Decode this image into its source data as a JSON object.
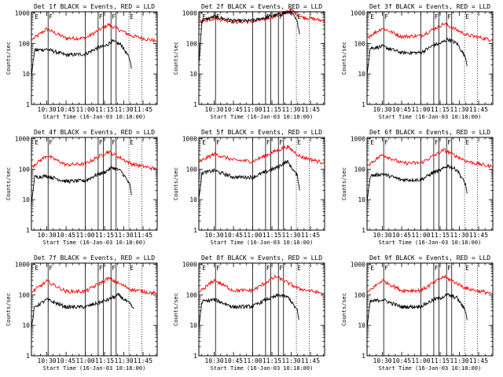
{
  "colors": {
    "background": "#ffffff",
    "axes": "#000000",
    "events": "#000000",
    "lld": "#ff0000",
    "annotation": "#000000"
  },
  "chart_data": {
    "type": "line",
    "grid": false,
    "log_y": true,
    "ylabel": "Counts/sec",
    "xlabel": "Start Time (16-Jan-03 10:18:00)",
    "xlim": [
      "10:18",
      "11:56"
    ],
    "ylim": [
      1,
      1100
    ],
    "x_ticks": [
      "10:30",
      "10:45",
      "11:00",
      "11:15",
      "11:30",
      "11:45"
    ],
    "y_ticks": [
      "1",
      "10",
      "100",
      "1000"
    ],
    "time_markers": [
      {
        "time": "10:20",
        "label": "E",
        "line": "none"
      },
      {
        "time": "10:31",
        "label": "F",
        "line": "solid"
      },
      {
        "time": "11:00",
        "label": "",
        "line": "solid"
      },
      {
        "time": "11:10",
        "label": "F",
        "line": "solid"
      },
      {
        "time": "11:14",
        "label": "",
        "line": "solid"
      },
      {
        "time": "11:20",
        "label": "F",
        "line": "solid"
      },
      {
        "time": "11:24",
        "label": "",
        "line": "solid"
      },
      {
        "time": "11:34",
        "label": "E",
        "line": "dotted"
      },
      {
        "time": "11:44",
        "label": "",
        "line": "dotted"
      }
    ],
    "series_names": [
      "BLACK = Events",
      "RED = LLD"
    ],
    "panels": [
      {
        "title": "Det 1f BLACK = Events, RED = LLD",
        "red": [
          [
            10.3,
            130
          ],
          [
            10.5,
            300
          ],
          [
            10.75,
            150
          ],
          [
            11.0,
            150
          ],
          [
            11.3,
            420
          ],
          [
            11.6,
            180
          ],
          [
            11.93,
            120
          ]
        ],
        "black": [
          [
            10.3,
            8
          ],
          [
            10.34,
            60
          ],
          [
            10.5,
            65
          ],
          [
            10.75,
            42
          ],
          [
            11.0,
            45
          ],
          [
            11.17,
            75
          ],
          [
            11.25,
            80
          ],
          [
            11.35,
            120
          ],
          [
            11.47,
            90
          ],
          [
            11.58,
            30
          ],
          [
            11.6,
            15
          ]
        ]
      },
      {
        "title": "Det 2f BLACK = Events, RED = LLD",
        "red": [
          [
            10.3,
            500
          ],
          [
            10.5,
            680
          ],
          [
            10.75,
            520
          ],
          [
            11.0,
            520
          ],
          [
            11.3,
            800
          ],
          [
            11.5,
            1300
          ],
          [
            11.63,
            750
          ],
          [
            11.93,
            550
          ]
        ],
        "black": [
          [
            10.3,
            20
          ],
          [
            10.34,
            570
          ],
          [
            10.5,
            760
          ],
          [
            10.75,
            560
          ],
          [
            11.0,
            560
          ],
          [
            11.3,
            850
          ],
          [
            11.5,
            1100
          ],
          [
            11.58,
            500
          ],
          [
            11.61,
            200
          ]
        ]
      },
      {
        "title": "Det 3f BLACK = Events, RED = LLD",
        "red": [
          [
            10.3,
            160
          ],
          [
            10.5,
            320
          ],
          [
            10.75,
            170
          ],
          [
            11.0,
            180
          ],
          [
            11.3,
            450
          ],
          [
            11.6,
            190
          ],
          [
            11.93,
            130
          ]
        ],
        "black": [
          [
            10.3,
            9
          ],
          [
            10.34,
            70
          ],
          [
            10.5,
            80
          ],
          [
            10.75,
            50
          ],
          [
            11.0,
            50
          ],
          [
            11.17,
            90
          ],
          [
            11.25,
            100
          ],
          [
            11.35,
            140
          ],
          [
            11.47,
            100
          ],
          [
            11.58,
            35
          ],
          [
            11.6,
            18
          ]
        ]
      },
      {
        "title": "Det 4f BLACK = Events, RED = LLD",
        "red": [
          [
            10.3,
            120
          ],
          [
            10.5,
            280
          ],
          [
            10.75,
            140
          ],
          [
            11.0,
            150
          ],
          [
            11.3,
            380
          ],
          [
            11.6,
            150
          ],
          [
            11.93,
            100
          ]
        ],
        "black": [
          [
            10.3,
            7
          ],
          [
            10.34,
            55
          ],
          [
            10.5,
            60
          ],
          [
            10.75,
            40
          ],
          [
            11.0,
            42
          ],
          [
            11.17,
            70
          ],
          [
            11.25,
            80
          ],
          [
            11.35,
            115
          ],
          [
            11.47,
            85
          ],
          [
            11.58,
            30
          ],
          [
            11.6,
            14
          ]
        ]
      },
      {
        "title": "Det 5f BLACK = Events, RED = LLD",
        "red": [
          [
            10.3,
            170
          ],
          [
            10.5,
            320
          ],
          [
            10.75,
            200
          ],
          [
            11.0,
            180
          ],
          [
            11.3,
            400
          ],
          [
            11.45,
            550
          ],
          [
            11.62,
            260
          ],
          [
            11.93,
            160
          ]
        ],
        "black": [
          [
            10.3,
            10
          ],
          [
            10.34,
            75
          ],
          [
            10.5,
            90
          ],
          [
            10.75,
            55
          ],
          [
            11.0,
            55
          ],
          [
            11.3,
            110
          ],
          [
            11.45,
            180
          ],
          [
            11.58,
            60
          ],
          [
            11.61,
            20
          ]
        ]
      },
      {
        "title": "Det 6f BLACK = Events, RED = LLD",
        "red": [
          [
            10.3,
            130
          ],
          [
            10.5,
            300
          ],
          [
            10.75,
            160
          ],
          [
            11.0,
            160
          ],
          [
            11.3,
            430
          ],
          [
            11.6,
            180
          ],
          [
            11.93,
            120
          ]
        ],
        "black": [
          [
            10.3,
            8
          ],
          [
            10.34,
            60
          ],
          [
            10.5,
            70
          ],
          [
            10.75,
            45
          ],
          [
            11.0,
            45
          ],
          [
            11.17,
            80
          ],
          [
            11.25,
            90
          ],
          [
            11.35,
            130
          ],
          [
            11.47,
            95
          ],
          [
            11.58,
            32
          ],
          [
            11.6,
            16
          ]
        ]
      },
      {
        "title": "Det 7f BLACK = Events, RED = LLD",
        "red": [
          [
            10.3,
            120
          ],
          [
            10.5,
            280
          ],
          [
            10.75,
            130
          ],
          [
            11.0,
            130
          ],
          [
            11.3,
            350
          ],
          [
            11.6,
            150
          ],
          [
            11.93,
            110
          ]
        ],
        "black": [
          [
            10.3,
            8
          ],
          [
            10.34,
            40
          ],
          [
            10.5,
            70
          ],
          [
            10.75,
            40
          ],
          [
            11.0,
            40
          ],
          [
            11.3,
            70
          ],
          [
            11.43,
            100
          ],
          [
            11.58,
            50
          ],
          [
            11.63,
            35
          ]
        ]
      },
      {
        "title": "Det 8f BLACK = Events, RED = LLD",
        "red": [
          [
            10.3,
            120
          ],
          [
            10.5,
            300
          ],
          [
            10.75,
            140
          ],
          [
            11.0,
            140
          ],
          [
            11.3,
            400
          ],
          [
            11.6,
            160
          ],
          [
            11.93,
            110
          ]
        ],
        "black": [
          [
            10.3,
            8
          ],
          [
            10.34,
            60
          ],
          [
            10.5,
            70
          ],
          [
            10.75,
            40
          ],
          [
            11.0,
            42
          ],
          [
            11.17,
            70
          ],
          [
            11.25,
            80
          ],
          [
            11.35,
            100
          ],
          [
            11.47,
            80
          ],
          [
            11.58,
            30
          ],
          [
            11.6,
            15
          ]
        ]
      },
      {
        "title": "Det 9f BLACK = Events, RED = LLD",
        "red": [
          [
            10.3,
            120
          ],
          [
            10.5,
            300
          ],
          [
            10.75,
            140
          ],
          [
            11.0,
            140
          ],
          [
            11.3,
            400
          ],
          [
            11.6,
            160
          ],
          [
            11.93,
            110
          ]
        ],
        "black": [
          [
            10.3,
            8
          ],
          [
            10.34,
            60
          ],
          [
            10.5,
            70
          ],
          [
            10.75,
            40
          ],
          [
            11.0,
            42
          ],
          [
            11.17,
            70
          ],
          [
            11.25,
            80
          ],
          [
            11.35,
            100
          ],
          [
            11.47,
            80
          ],
          [
            11.58,
            30
          ],
          [
            11.6,
            15
          ]
        ]
      }
    ]
  }
}
